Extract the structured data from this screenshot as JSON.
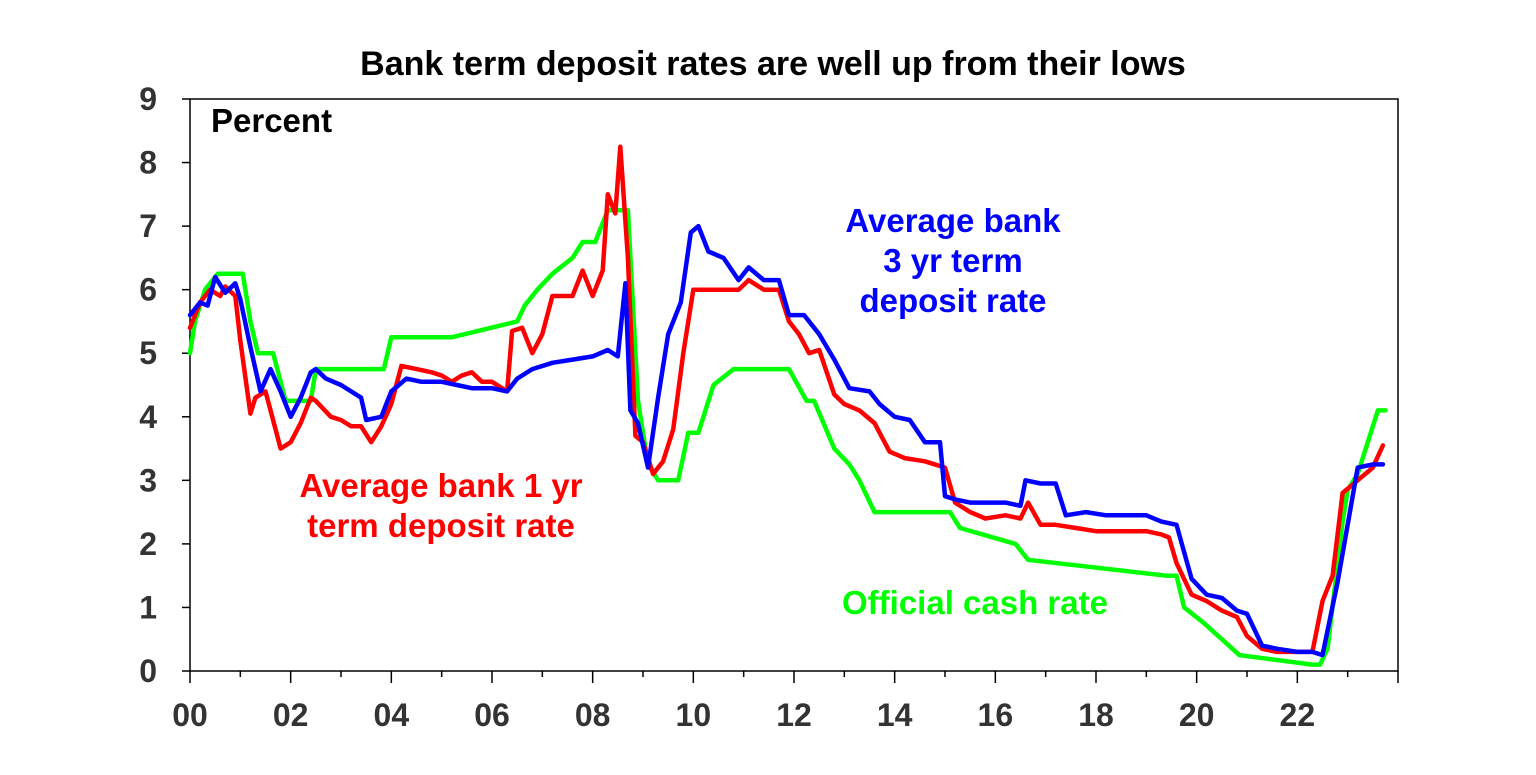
{
  "chart_data": {
    "type": "line",
    "title": "Bank term deposit rates are well up from their lows",
    "ylabel": "Percent",
    "xlabel": "",
    "xlim": [
      2000,
      2024
    ],
    "ylim": [
      0,
      9
    ],
    "x_tick_labels": [
      "00",
      "02",
      "04",
      "06",
      "08",
      "10",
      "12",
      "14",
      "16",
      "18",
      "20",
      "22"
    ],
    "x_tick_values": [
      2000,
      2002,
      2004,
      2006,
      2008,
      2010,
      2012,
      2014,
      2016,
      2018,
      2020,
      2022
    ],
    "y_ticks": [
      0,
      1,
      2,
      3,
      4,
      5,
      6,
      7,
      8,
      9
    ],
    "grid": false,
    "legend": "none (series labelled by annotations)",
    "annotations": [
      {
        "series": 0,
        "lines": [
          "Average bank 1 yr",
          "term deposit rate"
        ],
        "color": "#ff0000"
      },
      {
        "series": 1,
        "lines": [
          "Average bank",
          "3 yr term",
          "deposit rate"
        ],
        "color": "#0000ff"
      },
      {
        "series": 2,
        "lines": [
          "Official cash rate"
        ],
        "color": "#00ff00"
      }
    ],
    "series": [
      {
        "name": "Average bank 1 yr term deposit rate",
        "color": "#ff0000",
        "x": [
          2000.0,
          2000.2,
          2000.4,
          2000.6,
          2000.7,
          2000.9,
          2001.0,
          2001.2,
          2001.3,
          2001.5,
          2001.7,
          2001.8,
          2002.0,
          2002.2,
          2002.4,
          2002.5,
          2002.8,
          2003.0,
          2003.2,
          2003.4,
          2003.6,
          2003.8,
          2004.0,
          2004.2,
          2004.5,
          2004.8,
          2005.0,
          2005.2,
          2005.4,
          2005.6,
          2005.8,
          2006.0,
          2006.3,
          2006.4,
          2006.6,
          2006.8,
          2007.0,
          2007.2,
          2007.4,
          2007.6,
          2007.8,
          2008.0,
          2008.2,
          2008.3,
          2008.45,
          2008.55,
          2008.7,
          2008.85,
          2009.0,
          2009.2,
          2009.4,
          2009.6,
          2009.8,
          2010.0,
          2010.3,
          2010.6,
          2010.9,
          2011.1,
          2011.4,
          2011.7,
          2011.9,
          2012.1,
          2012.3,
          2012.5,
          2012.8,
          2013.0,
          2013.3,
          2013.6,
          2013.9,
          2014.2,
          2014.6,
          2015.0,
          2015.2,
          2015.5,
          2015.8,
          2016.2,
          2016.5,
          2016.65,
          2016.9,
          2017.2,
          2017.6,
          2018.0,
          2018.5,
          2019.0,
          2019.3,
          2019.45,
          2019.6,
          2019.9,
          2020.2,
          2020.5,
          2020.8,
          2021.0,
          2021.3,
          2021.6,
          2022.0,
          2022.3,
          2022.5,
          2022.7,
          2022.9,
          2023.2,
          2023.5,
          2023.7
        ],
        "y": [
          5.4,
          5.8,
          6.0,
          5.9,
          6.05,
          5.9,
          5.2,
          4.05,
          4.3,
          4.4,
          3.8,
          3.5,
          3.6,
          3.9,
          4.3,
          4.25,
          4.0,
          3.95,
          3.85,
          3.85,
          3.6,
          3.85,
          4.2,
          4.8,
          4.75,
          4.7,
          4.65,
          4.55,
          4.65,
          4.7,
          4.55,
          4.55,
          4.4,
          5.35,
          5.4,
          5.0,
          5.3,
          5.9,
          5.9,
          5.9,
          6.3,
          5.9,
          6.3,
          7.5,
          7.2,
          8.25,
          6.5,
          3.7,
          3.6,
          3.1,
          3.3,
          3.8,
          5.0,
          6.0,
          6.0,
          6.0,
          6.0,
          6.15,
          6.0,
          6.0,
          5.5,
          5.3,
          5.0,
          5.05,
          4.35,
          4.2,
          4.1,
          3.9,
          3.45,
          3.35,
          3.3,
          3.2,
          2.65,
          2.5,
          2.4,
          2.45,
          2.4,
          2.65,
          2.3,
          2.3,
          2.25,
          2.2,
          2.2,
          2.2,
          2.15,
          2.1,
          1.7,
          1.2,
          1.1,
          0.95,
          0.85,
          0.55,
          0.35,
          0.3,
          0.3,
          0.3,
          1.1,
          1.5,
          2.8,
          3.0,
          3.2,
          3.55
        ]
      },
      {
        "name": "Average bank 3 yr term deposit rate",
        "color": "#0000ff",
        "x": [
          2000.0,
          2000.2,
          2000.35,
          2000.5,
          2000.7,
          2000.9,
          2001.0,
          2001.2,
          2001.4,
          2001.6,
          2001.8,
          2002.0,
          2002.2,
          2002.4,
          2002.5,
          2002.7,
          2003.0,
          2003.2,
          2003.4,
          2003.5,
          2003.8,
          2004.0,
          2004.3,
          2004.6,
          2005.0,
          2005.3,
          2005.6,
          2006.0,
          2006.3,
          2006.5,
          2006.8,
          2007.2,
          2007.6,
          2008.0,
          2008.3,
          2008.5,
          2008.65,
          2008.75,
          2008.9,
          2009.1,
          2009.3,
          2009.5,
          2009.75,
          2009.95,
          2010.1,
          2010.3,
          2010.6,
          2010.9,
          2011.1,
          2011.4,
          2011.7,
          2011.9,
          2012.2,
          2012.5,
          2012.8,
          2013.1,
          2013.5,
          2013.7,
          2014.0,
          2014.3,
          2014.6,
          2014.9,
          2015.0,
          2015.2,
          2015.5,
          2015.8,
          2016.2,
          2016.5,
          2016.6,
          2016.9,
          2017.2,
          2017.4,
          2017.8,
          2018.2,
          2018.6,
          2019.0,
          2019.3,
          2019.6,
          2019.9,
          2020.2,
          2020.5,
          2020.8,
          2021.0,
          2021.3,
          2021.6,
          2022.0,
          2022.3,
          2022.5,
          2022.8,
          2023.2,
          2023.5,
          2023.7
        ],
        "y": [
          5.6,
          5.8,
          5.75,
          6.2,
          5.95,
          6.1,
          5.85,
          5.1,
          4.4,
          4.75,
          4.4,
          4.0,
          4.3,
          4.7,
          4.75,
          4.6,
          4.5,
          4.4,
          4.3,
          3.95,
          4.0,
          4.4,
          4.6,
          4.55,
          4.55,
          4.5,
          4.45,
          4.45,
          4.4,
          4.6,
          4.75,
          4.85,
          4.9,
          4.95,
          5.05,
          4.95,
          6.1,
          4.1,
          3.9,
          3.2,
          4.3,
          5.3,
          5.8,
          6.9,
          7.0,
          6.6,
          6.5,
          6.15,
          6.35,
          6.15,
          6.15,
          5.6,
          5.6,
          5.3,
          4.9,
          4.45,
          4.4,
          4.2,
          4.0,
          3.95,
          3.6,
          3.6,
          2.75,
          2.7,
          2.65,
          2.65,
          2.65,
          2.6,
          3.0,
          2.95,
          2.95,
          2.45,
          2.5,
          2.45,
          2.45,
          2.45,
          2.35,
          2.3,
          1.45,
          1.2,
          1.15,
          0.95,
          0.9,
          0.4,
          0.35,
          0.3,
          0.3,
          0.25,
          1.4,
          3.2,
          3.25,
          3.25
        ]
      },
      {
        "name": "Official cash rate",
        "color": "#00ff00",
        "x": [
          2000.0,
          2000.1,
          2000.3,
          2000.55,
          2000.7,
          2001.05,
          2001.2,
          2001.35,
          2001.65,
          2001.9,
          2002.4,
          2002.5,
          2003.85,
          2004.0,
          2005.2,
          2006.5,
          2006.65,
          2006.9,
          2007.2,
          2007.6,
          2007.8,
          2008.05,
          2008.3,
          2008.7,
          2008.9,
          2009.1,
          2009.3,
          2009.7,
          2009.9,
          2010.1,
          2010.4,
          2010.8,
          2011.9,
          2012.25,
          2012.4,
          2012.8,
          2013.1,
          2013.3,
          2013.6,
          2015.1,
          2015.3,
          2016.4,
          2016.65,
          2019.4,
          2019.6,
          2019.75,
          2020.15,
          2020.85,
          2022.3,
          2022.45,
          2022.6,
          2022.75,
          2022.9,
          2023.0,
          2023.2,
          2023.4,
          2023.6,
          2023.75
        ],
        "y": [
          5.0,
          5.5,
          6.0,
          6.25,
          6.25,
          6.25,
          5.5,
          5.0,
          5.0,
          4.25,
          4.25,
          4.75,
          4.75,
          5.25,
          5.25,
          5.5,
          5.75,
          6.0,
          6.25,
          6.5,
          6.75,
          6.75,
          7.25,
          7.25,
          4.25,
          3.25,
          3.0,
          3.0,
          3.75,
          3.75,
          4.5,
          4.75,
          4.75,
          4.25,
          4.25,
          3.5,
          3.25,
          3.0,
          2.5,
          2.5,
          2.25,
          2.0,
          1.75,
          1.5,
          1.5,
          1.0,
          0.75,
          0.25,
          0.1,
          0.1,
          0.35,
          1.35,
          2.35,
          2.85,
          3.1,
          3.6,
          4.1,
          4.1
        ]
      }
    ]
  }
}
